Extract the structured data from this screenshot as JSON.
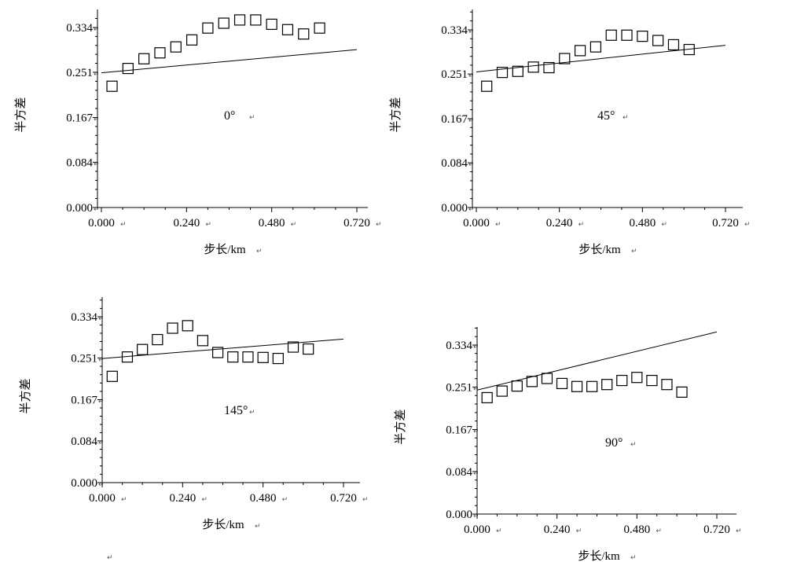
{
  "chart_data": [
    {
      "type": "scatter",
      "angle_label": "0°",
      "xlabel": "步长/km",
      "ylabel": "半方差",
      "xticks": [
        "0.000",
        "0.240",
        "0.480",
        "0.720"
      ],
      "yticks": [
        "0.000",
        "0.084",
        "0.167",
        "0.251",
        "0.334"
      ],
      "xlim": [
        0,
        0.72
      ],
      "ylim": [
        0,
        0.334
      ],
      "points": {
        "x": [
          0.03,
          0.075,
          0.12,
          0.165,
          0.21,
          0.255,
          0.3,
          0.345,
          0.39,
          0.435,
          0.48,
          0.525,
          0.57,
          0.615
        ],
        "y": [
          0.225,
          0.258,
          0.276,
          0.287,
          0.298,
          0.311,
          0.333,
          0.342,
          0.348,
          0.348,
          0.34,
          0.33,
          0.322,
          0.333
        ]
      },
      "fit_line": {
        "x": [
          0,
          0.72
        ],
        "y": [
          0.25,
          0.293
        ]
      }
    },
    {
      "type": "scatter",
      "angle_label": "45°",
      "xlabel": "步长/km",
      "ylabel": "半方差",
      "xticks": [
        "0.000",
        "0.240",
        "0.480",
        "0.720"
      ],
      "yticks": [
        "0.000",
        "0.084",
        "0.167",
        "0.251",
        "0.334"
      ],
      "xlim": [
        0,
        0.72
      ],
      "ylim": [
        0,
        0.334
      ],
      "points": {
        "x": [
          0.03,
          0.075,
          0.12,
          0.165,
          0.21,
          0.255,
          0.3,
          0.345,
          0.39,
          0.435,
          0.48,
          0.525,
          0.57,
          0.615
        ],
        "y": [
          0.228,
          0.254,
          0.256,
          0.264,
          0.263,
          0.28,
          0.295,
          0.302,
          0.324,
          0.324,
          0.322,
          0.314,
          0.306,
          0.297
        ]
      },
      "fit_line": {
        "x": [
          0,
          0.72
        ],
        "y": [
          0.255,
          0.305
        ]
      }
    },
    {
      "type": "scatter",
      "angle_label": "145°",
      "xlabel": "步长/km",
      "ylabel": "半方差",
      "xticks": [
        "0.000",
        "0.240",
        "0.480",
        "0.720"
      ],
      "yticks": [
        "0.000",
        "0.084",
        "0.167",
        "0.251",
        "0.334"
      ],
      "xlim": [
        0,
        0.72
      ],
      "ylim": [
        0,
        0.334
      ],
      "points": {
        "x": [
          0.03,
          0.075,
          0.12,
          0.165,
          0.21,
          0.255,
          0.3,
          0.345,
          0.39,
          0.435,
          0.48,
          0.525,
          0.57,
          0.615
        ],
        "y": [
          0.214,
          0.253,
          0.268,
          0.288,
          0.311,
          0.316,
          0.286,
          0.262,
          0.253,
          0.253,
          0.252,
          0.25,
          0.273,
          0.269
        ]
      },
      "fit_line": {
        "x": [
          0,
          0.72
        ],
        "y": [
          0.25,
          0.289
        ]
      }
    },
    {
      "type": "scatter",
      "angle_label": "90°",
      "xlabel": "步长/km",
      "ylabel": "半方差",
      "xticks": [
        "0.000",
        "0.240",
        "0.480",
        "0.720"
      ],
      "yticks": [
        "0.000",
        "0.084",
        "0.167",
        "0.251",
        "0.334"
      ],
      "xlim": [
        0,
        0.72
      ],
      "ylim": [
        0,
        0.334
      ],
      "points": {
        "x": [
          0.03,
          0.075,
          0.12,
          0.165,
          0.21,
          0.255,
          0.3,
          0.345,
          0.39,
          0.435,
          0.48,
          0.525,
          0.57,
          0.615
        ],
        "y": [
          0.23,
          0.243,
          0.253,
          0.262,
          0.268,
          0.258,
          0.252,
          0.252,
          0.256,
          0.264,
          0.27,
          0.264,
          0.256,
          0.241
        ]
      },
      "fit_line": {
        "x": [
          0,
          0.72
        ],
        "y": [
          0.245,
          0.36
        ]
      }
    }
  ]
}
